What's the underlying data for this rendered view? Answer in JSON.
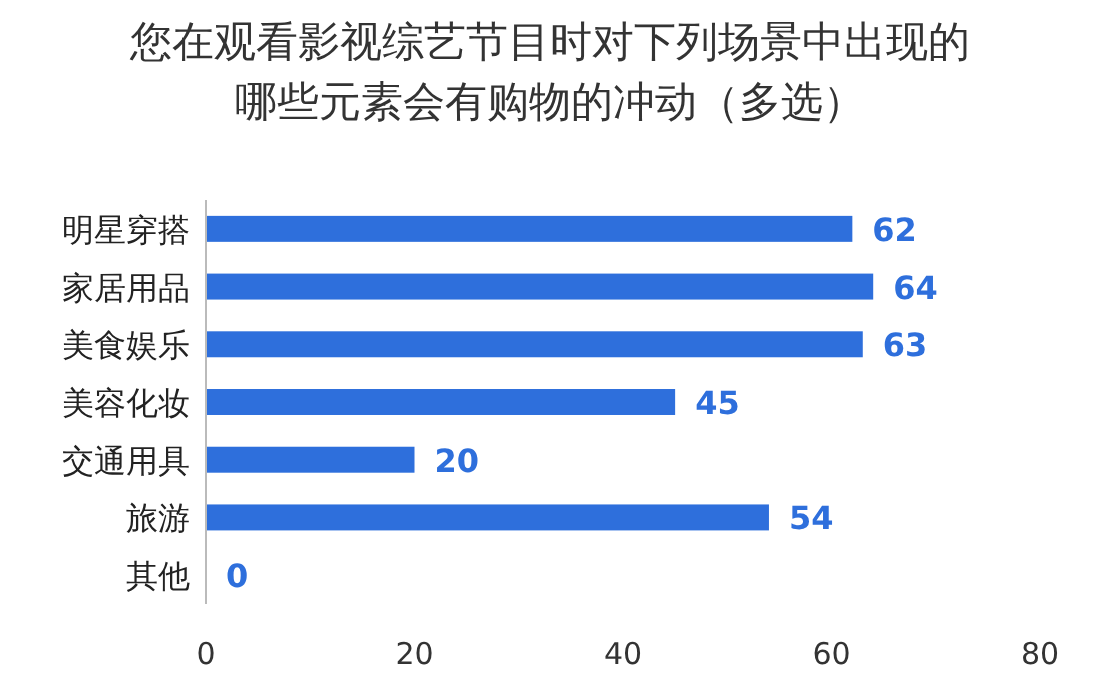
{
  "chart_data": {
    "type": "bar",
    "orientation": "horizontal",
    "title": "您在观看影视综艺节目时对下列场景中出现的哪些元素会有购物的冲动（多选）",
    "categories": [
      "明星穿搭",
      "家居用品",
      "美食娱乐",
      "美容化妆",
      "交通用具",
      "旅游",
      "其他"
    ],
    "values": [
      62,
      64,
      63,
      45,
      20,
      54,
      0
    ],
    "color": "#2e6fdc",
    "xlim": [
      0,
      80
    ],
    "xticks": [
      0,
      20,
      40,
      60,
      80
    ],
    "data_labels": true
  }
}
